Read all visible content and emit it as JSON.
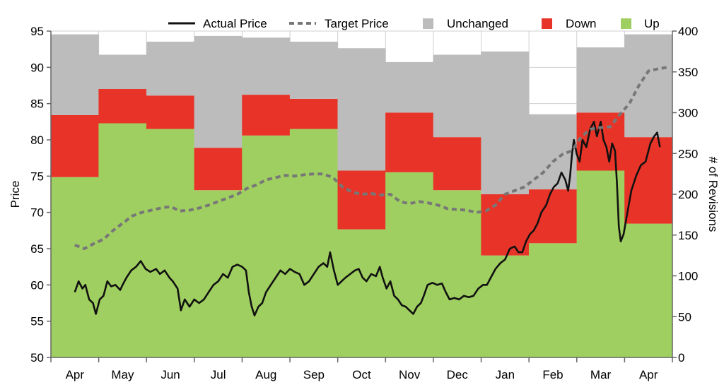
{
  "chart_data": {
    "type": "bar",
    "categories": [
      "Apr",
      "May",
      "Jun",
      "Jul",
      "Aug",
      "Sep",
      "Oct",
      "Nov",
      "Dec",
      "Jan",
      "Feb",
      "Mar",
      "Apr"
    ],
    "bar_stacking": "stacked",
    "series": [
      {
        "name": "Up",
        "axis": "right",
        "values": [
          221,
          287,
          280,
          205,
          272,
          280,
          157,
          227,
          205,
          125,
          140,
          229,
          164
        ]
      },
      {
        "name": "Down",
        "axis": "right",
        "values": [
          76,
          42,
          41,
          52,
          50,
          37,
          72,
          73,
          65,
          75,
          66,
          71,
          106
        ]
      },
      {
        "name": "Unchanged",
        "axis": "right",
        "values": [
          99,
          42,
          66,
          137,
          70,
          70,
          150,
          62,
          101,
          175,
          92,
          80,
          126
        ]
      }
    ],
    "line_series": [
      {
        "name": "Actual Price",
        "axis": "left",
        "style": "solid",
        "points": [
          [
            0.0,
            59.0
          ],
          [
            0.08,
            60.5
          ],
          [
            0.16,
            59.5
          ],
          [
            0.22,
            60.0
          ],
          [
            0.3,
            58.0
          ],
          [
            0.38,
            57.5
          ],
          [
            0.44,
            56.0
          ],
          [
            0.52,
            58.0
          ],
          [
            0.6,
            58.5
          ],
          [
            0.68,
            60.5
          ],
          [
            0.76,
            59.8
          ],
          [
            0.85,
            60.0
          ],
          [
            0.95,
            59.3
          ],
          [
            1.0,
            60.0
          ],
          [
            1.08,
            61.0
          ],
          [
            1.18,
            62.0
          ],
          [
            1.28,
            62.5
          ],
          [
            1.38,
            63.3
          ],
          [
            1.48,
            62.2
          ],
          [
            1.58,
            61.8
          ],
          [
            1.7,
            62.2
          ],
          [
            1.78,
            61.5
          ],
          [
            1.88,
            62.0
          ],
          [
            1.98,
            61.0
          ],
          [
            2.05,
            60.5
          ],
          [
            2.15,
            59.5
          ],
          [
            2.22,
            56.5
          ],
          [
            2.3,
            58.0
          ],
          [
            2.4,
            57.0
          ],
          [
            2.5,
            58.0
          ],
          [
            2.6,
            57.5
          ],
          [
            2.7,
            58.0
          ],
          [
            2.8,
            59.0
          ],
          [
            2.9,
            60.0
          ],
          [
            3.0,
            60.5
          ],
          [
            3.1,
            61.5
          ],
          [
            3.2,
            61.0
          ],
          [
            3.3,
            62.5
          ],
          [
            3.4,
            62.8
          ],
          [
            3.5,
            62.5
          ],
          [
            3.58,
            62.0
          ],
          [
            3.64,
            59.0
          ],
          [
            3.7,
            57.0
          ],
          [
            3.76,
            55.8
          ],
          [
            3.84,
            57.0
          ],
          [
            3.92,
            57.5
          ],
          [
            4.0,
            59.0
          ],
          [
            4.1,
            60.0
          ],
          [
            4.2,
            61.0
          ],
          [
            4.3,
            62.0
          ],
          [
            4.4,
            61.5
          ],
          [
            4.5,
            62.2
          ],
          [
            4.6,
            61.8
          ],
          [
            4.7,
            61.5
          ],
          [
            4.8,
            60.0
          ],
          [
            4.9,
            60.5
          ],
          [
            5.0,
            61.5
          ],
          [
            5.1,
            62.5
          ],
          [
            5.2,
            63.0
          ],
          [
            5.28,
            62.5
          ],
          [
            5.34,
            64.5
          ],
          [
            5.42,
            62.0
          ],
          [
            5.5,
            60.0
          ],
          [
            5.58,
            60.5
          ],
          [
            5.66,
            61.0
          ],
          [
            5.76,
            61.5
          ],
          [
            5.86,
            62.0
          ],
          [
            5.94,
            62.2
          ],
          [
            6.02,
            61.0
          ],
          [
            6.1,
            60.5
          ],
          [
            6.2,
            61.5
          ],
          [
            6.3,
            61.2
          ],
          [
            6.38,
            62.5
          ],
          [
            6.44,
            61.0
          ],
          [
            6.52,
            59.5
          ],
          [
            6.6,
            60.5
          ],
          [
            6.68,
            58.5
          ],
          [
            6.76,
            58.0
          ],
          [
            6.84,
            57.2
          ],
          [
            6.92,
            57.0
          ],
          [
            7.0,
            56.5
          ],
          [
            7.08,
            56.0
          ],
          [
            7.16,
            57.0
          ],
          [
            7.24,
            57.5
          ],
          [
            7.3,
            58.5
          ],
          [
            7.38,
            60.0
          ],
          [
            7.48,
            60.3
          ],
          [
            7.58,
            60.0
          ],
          [
            7.68,
            60.2
          ],
          [
            7.76,
            59.0
          ],
          [
            7.84,
            58.0
          ],
          [
            7.94,
            58.2
          ],
          [
            8.04,
            58.0
          ],
          [
            8.14,
            58.5
          ],
          [
            8.24,
            58.3
          ],
          [
            8.34,
            58.5
          ],
          [
            8.44,
            59.5
          ],
          [
            8.54,
            60.0
          ],
          [
            8.62,
            60.0
          ],
          [
            8.7,
            61.0
          ],
          [
            8.8,
            62.2
          ],
          [
            8.9,
            63.0
          ],
          [
            9.0,
            63.5
          ],
          [
            9.1,
            65.0
          ],
          [
            9.2,
            65.3
          ],
          [
            9.28,
            64.5
          ],
          [
            9.36,
            64.5
          ],
          [
            9.44,
            66.0
          ],
          [
            9.52,
            67.0
          ],
          [
            9.6,
            67.5
          ],
          [
            9.68,
            68.5
          ],
          [
            9.76,
            70.0
          ],
          [
            9.86,
            71.0
          ],
          [
            9.94,
            72.5
          ],
          [
            10.02,
            73.5
          ],
          [
            10.1,
            74.0
          ],
          [
            10.18,
            75.5
          ],
          [
            10.26,
            74.5
          ],
          [
            10.32,
            73.0
          ],
          [
            10.36,
            75.0
          ],
          [
            10.4,
            78.0
          ],
          [
            10.44,
            80.0
          ],
          [
            10.5,
            78.0
          ],
          [
            10.56,
            77.0
          ],
          [
            10.62,
            80.0
          ],
          [
            10.7,
            79.0
          ],
          [
            10.78,
            81.5
          ],
          [
            10.86,
            82.5
          ],
          [
            10.92,
            80.5
          ],
          [
            11.0,
            82.5
          ],
          [
            11.06,
            80.0
          ],
          [
            11.12,
            79.0
          ],
          [
            11.18,
            77.0
          ],
          [
            11.24,
            79.5
          ],
          [
            11.3,
            78.5
          ],
          [
            11.34,
            74.0
          ],
          [
            11.38,
            68.0
          ],
          [
            11.42,
            66.0
          ],
          [
            11.48,
            67.0
          ],
          [
            11.56,
            70.0
          ],
          [
            11.64,
            73.0
          ],
          [
            11.74,
            75.0
          ],
          [
            11.84,
            76.5
          ],
          [
            11.94,
            77.0
          ],
          [
            12.04,
            79.5
          ],
          [
            12.12,
            80.5
          ],
          [
            12.18,
            81.0
          ],
          [
            12.24,
            79.0
          ]
        ]
      },
      {
        "name": "Target Price",
        "axis": "left",
        "style": "dashed",
        "points": [
          [
            0.0,
            65.5
          ],
          [
            0.2,
            65.0
          ],
          [
            0.4,
            65.7
          ],
          [
            0.6,
            66.3
          ],
          [
            0.8,
            67.5
          ],
          [
            1.0,
            68.5
          ],
          [
            1.2,
            69.5
          ],
          [
            1.4,
            70.0
          ],
          [
            1.6,
            70.3
          ],
          [
            1.8,
            70.6
          ],
          [
            2.0,
            70.8
          ],
          [
            2.2,
            70.2
          ],
          [
            2.4,
            70.3
          ],
          [
            2.6,
            70.6
          ],
          [
            2.8,
            71.0
          ],
          [
            3.0,
            71.5
          ],
          [
            3.2,
            72.0
          ],
          [
            3.4,
            72.5
          ],
          [
            3.6,
            73.3
          ],
          [
            3.8,
            73.8
          ],
          [
            4.0,
            74.5
          ],
          [
            4.2,
            74.8
          ],
          [
            4.4,
            75.1
          ],
          [
            4.6,
            75.0
          ],
          [
            4.8,
            75.2
          ],
          [
            5.0,
            75.3
          ],
          [
            5.2,
            75.3
          ],
          [
            5.4,
            74.8
          ],
          [
            5.6,
            73.5
          ],
          [
            5.8,
            72.8
          ],
          [
            6.0,
            72.5
          ],
          [
            6.2,
            72.6
          ],
          [
            6.4,
            72.4
          ],
          [
            6.6,
            72.5
          ],
          [
            6.8,
            71.5
          ],
          [
            7.0,
            71.2
          ],
          [
            7.2,
            71.5
          ],
          [
            7.4,
            71.3
          ],
          [
            7.6,
            71.0
          ],
          [
            7.8,
            70.5
          ],
          [
            8.0,
            70.4
          ],
          [
            8.2,
            70.3
          ],
          [
            8.4,
            70.0
          ],
          [
            8.6,
            70.2
          ],
          [
            8.8,
            71.0
          ],
          [
            9.0,
            72.5
          ],
          [
            9.2,
            73.0
          ],
          [
            9.4,
            73.5
          ],
          [
            9.6,
            74.5
          ],
          [
            9.8,
            75.5
          ],
          [
            10.0,
            77.0
          ],
          [
            10.2,
            78.0
          ],
          [
            10.4,
            78.5
          ],
          [
            10.6,
            80.5
          ],
          [
            10.8,
            81.5
          ],
          [
            11.0,
            81.7
          ],
          [
            11.2,
            81.8
          ],
          [
            11.4,
            83.5
          ],
          [
            11.6,
            85.0
          ],
          [
            11.8,
            87.5
          ],
          [
            12.0,
            89.5
          ],
          [
            12.2,
            89.8
          ],
          [
            12.4,
            90.0
          ]
        ]
      }
    ],
    "ylabel": "Price",
    "ylim": [
      50,
      95
    ],
    "yticks": [
      50,
      55,
      60,
      65,
      70,
      75,
      80,
      85,
      90,
      95
    ],
    "y2label": "# of Revisions",
    "y2lim": [
      0,
      400
    ],
    "y2ticks": [
      0,
      50,
      100,
      150,
      200,
      250,
      300,
      350,
      400
    ],
    "legend": {
      "placement": "top-right",
      "entries": [
        {
          "label": "Actual Price",
          "kind": "line-solid"
        },
        {
          "label": "Target Price",
          "kind": "line-dashed"
        },
        {
          "label": "Unchanged",
          "kind": "box"
        },
        {
          "label": "Down",
          "kind": "box"
        },
        {
          "label": "Up",
          "kind": "box"
        }
      ]
    },
    "colors": {
      "up": "#9fcf60",
      "down": "#e83428",
      "unchanged": "#bcbcbc",
      "actual": "#111111",
      "target": "#777777",
      "grid": "#d0d0d0",
      "axis": "#666666"
    },
    "grid": true
  }
}
